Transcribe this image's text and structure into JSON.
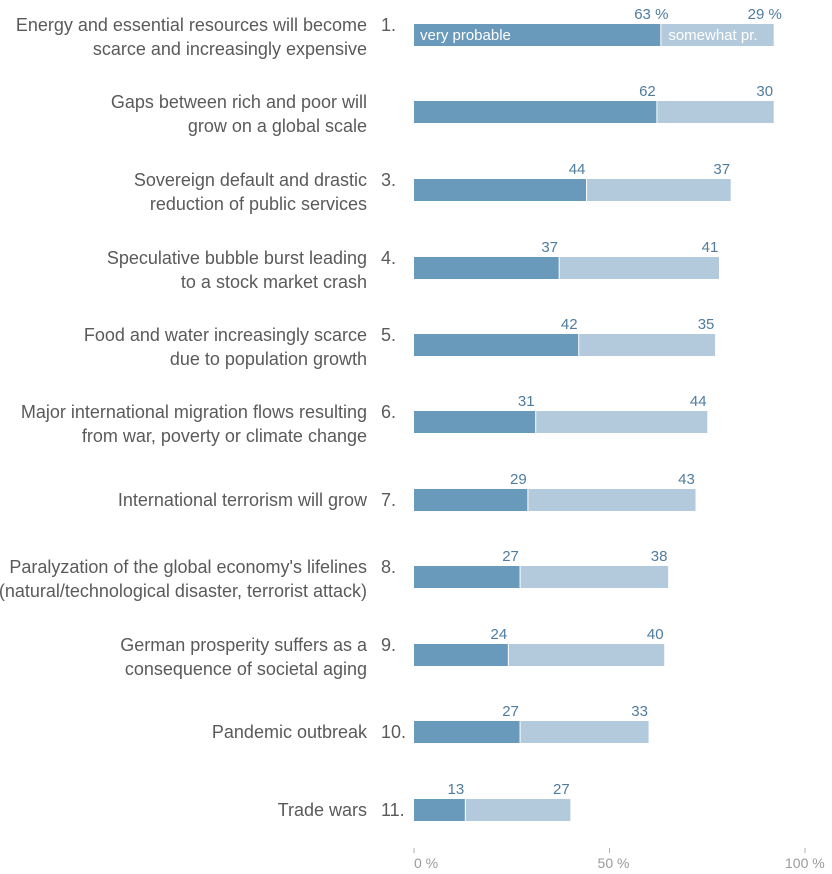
{
  "chart_data": {
    "type": "bar",
    "orientation": "horizontal",
    "stacked": true,
    "categories": [
      {
        "rank": "1.",
        "lines": [
          "Energy and essential resources will become",
          "scarce and increasingly expensive"
        ]
      },
      {
        "rank": "",
        "lines": [
          "Gaps between rich and poor will",
          "grow on a global scale"
        ]
      },
      {
        "rank": "3.",
        "lines": [
          "Sovereign default and drastic",
          "reduction of public services"
        ]
      },
      {
        "rank": "4.",
        "lines": [
          "Speculative bubble burst leading",
          "to a stock market crash"
        ]
      },
      {
        "rank": "5.",
        "lines": [
          "Food and water increasingly scarce",
          "due to population growth"
        ]
      },
      {
        "rank": "6.",
        "lines": [
          "Major international migration flows resulting",
          "from war, poverty or climate change"
        ]
      },
      {
        "rank": "7.",
        "lines": [
          "International terrorism will grow"
        ]
      },
      {
        "rank": "8.",
        "lines": [
          "Paralyzation of the global economy's lifelines",
          "(natural/technological disaster, terrorist attack)"
        ]
      },
      {
        "rank": "9.",
        "lines": [
          "German prosperity suffers as a",
          "consequence of societal aging"
        ]
      },
      {
        "rank": "10.",
        "lines": [
          "Pandemic outbreak"
        ]
      },
      {
        "rank": "11.",
        "lines": [
          "Trade wars"
        ]
      }
    ],
    "series": [
      {
        "name": "very probable",
        "color": "#6a9abb",
        "values": [
          63,
          62,
          44,
          37,
          42,
          31,
          29,
          27,
          24,
          27,
          13
        ],
        "value_labels": [
          "63 %",
          "62",
          "44",
          "37",
          "42",
          "31",
          "29",
          "27",
          "24",
          "27",
          "13"
        ]
      },
      {
        "name": "somewhat pr.",
        "color": "#b2cadb",
        "values": [
          29,
          30,
          37,
          41,
          35,
          44,
          43,
          38,
          40,
          33,
          27
        ],
        "value_labels": [
          "29 %",
          "30",
          "37",
          "41",
          "35",
          "44",
          "43",
          "38",
          "40",
          "33",
          "27"
        ]
      }
    ],
    "xlim": [
      0,
      100
    ],
    "x_ticks": [
      {
        "value": 0,
        "label": "0 %"
      },
      {
        "value": 50,
        "label": "50 %"
      },
      {
        "value": 100,
        "label": "100 %"
      }
    ],
    "grid": false,
    "legend": "inside first bar"
  }
}
